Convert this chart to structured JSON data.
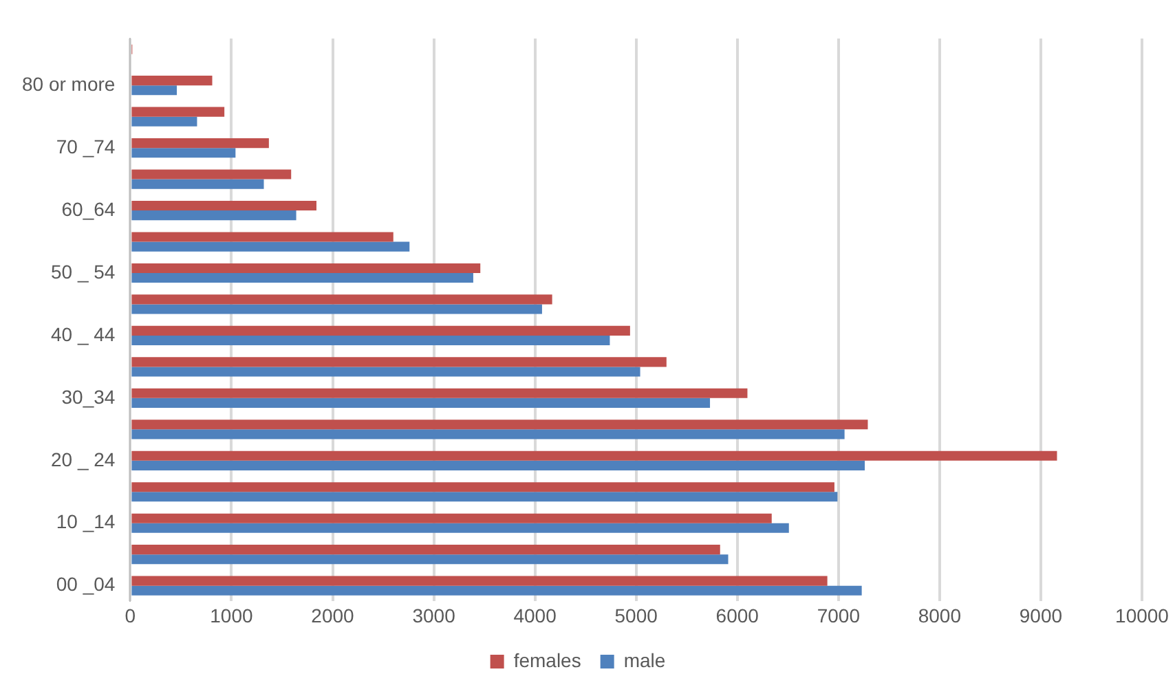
{
  "chart_data": {
    "type": "bar",
    "orientation": "horizontal",
    "categories": [
      null,
      "80 or more",
      null,
      "70 _74",
      null,
      "60_64",
      null,
      "50 _ 54",
      null,
      "40 _ 44",
      null,
      "30_34",
      null,
      "20 _ 24",
      null,
      "10 _14",
      null,
      "00 _04"
    ],
    "series": [
      {
        "name": "females",
        "color": "#c0504d",
        "values": [
          20,
          810,
          930,
          1370,
          1590,
          1840,
          2600,
          3460,
          4170,
          4940,
          5300,
          6100,
          7290,
          9160,
          6960,
          6340,
          5830,
          6890
        ]
      },
      {
        "name": "male",
        "color": "#4f81bd",
        "values": [
          0,
          460,
          660,
          1040,
          1320,
          1640,
          2760,
          3390,
          4070,
          4740,
          5040,
          5730,
          7060,
          7260,
          6990,
          6510,
          5910,
          7230
        ]
      }
    ],
    "xlim": [
      0,
      10000
    ],
    "xticks": [
      0,
      1000,
      2000,
      3000,
      4000,
      5000,
      6000,
      7000,
      8000,
      9000,
      10000
    ],
    "grid": "x",
    "legend": "bottom"
  }
}
